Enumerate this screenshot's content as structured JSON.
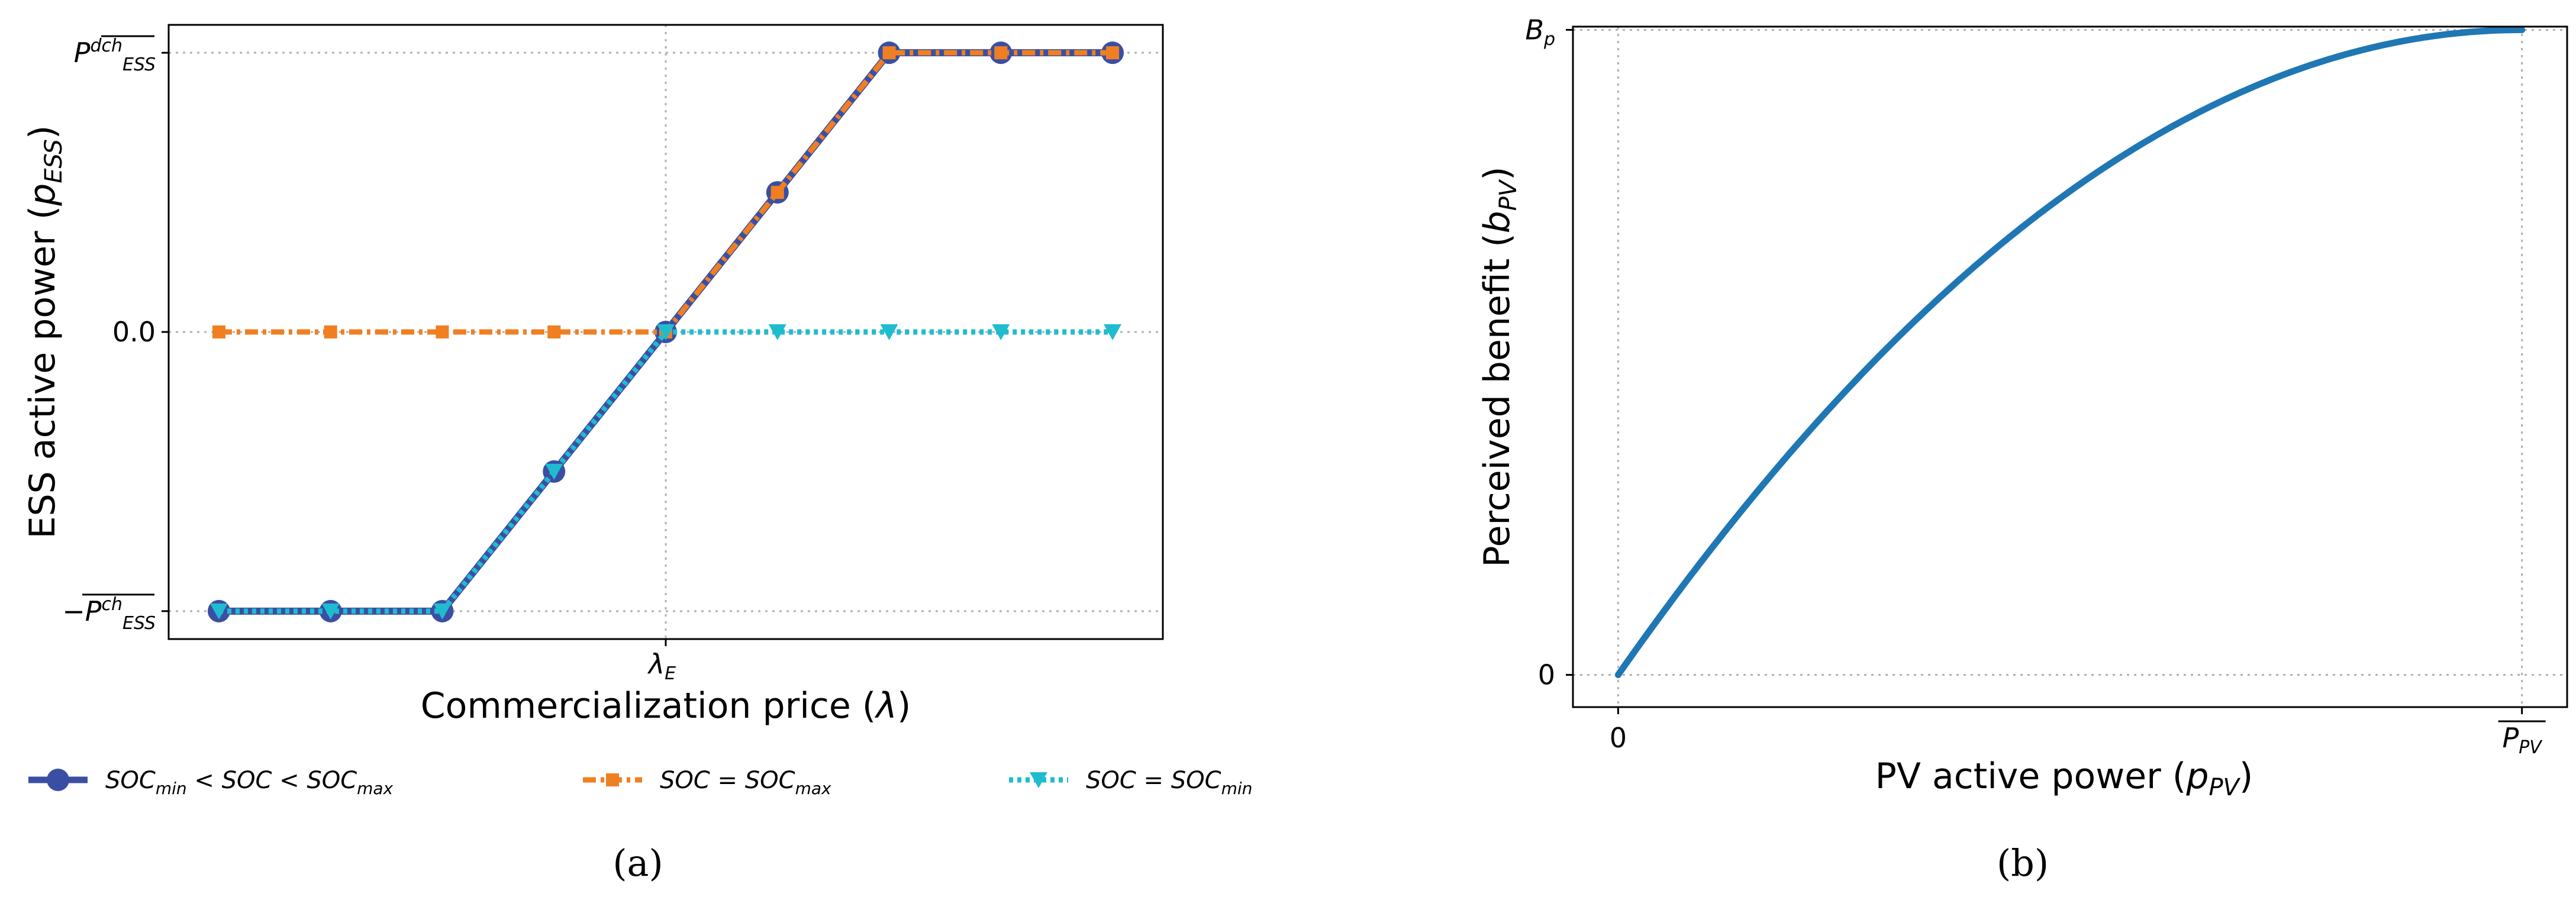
{
  "chart_data": [
    {
      "id": "a",
      "type": "line",
      "caption": "(a)",
      "xlabel_text": "Commercialization price (",
      "xlabel_sym": "λ",
      "xlabel_end": ")",
      "ylabel_text": "ESS active power (",
      "ylabel_sym": "p",
      "ylabel_sub": "ESS",
      "ylabel_end": ")",
      "x": [
        -4,
        -3,
        -2,
        -1,
        0,
        1,
        2,
        3,
        4
      ],
      "xlim": [
        -4.45,
        4.45
      ],
      "ylim": [
        -1.1,
        1.1
      ],
      "xticks": [
        {
          "value": 0,
          "sym": "λ",
          "sub": "E"
        }
      ],
      "yticks": [
        {
          "value": 1,
          "prefix": "",
          "sym": "P",
          "sup": "dch",
          "sub": "ESS",
          "overline": true
        },
        {
          "value": 0,
          "text": "0.0"
        },
        {
          "value": -1,
          "prefix": "−",
          "sym": "P",
          "sup": "ch",
          "sub": "ESS",
          "overline": true
        }
      ],
      "grid": true,
      "series": [
        {
          "name": "SOCmin < SOC < SOCmax",
          "legend": "SOC<sub>min</sub> < SOC < SOC<sub>max</sub>",
          "color": "#3a4fa3",
          "marker": "circle",
          "linestyle": "solid",
          "values": [
            -1,
            -1,
            -1,
            -0.5,
            0,
            0.5,
            1,
            1,
            1
          ]
        },
        {
          "name": "SOC = SOCmax",
          "legend": "SOC = SOC<sub>max</sub>",
          "color": "#f07f22",
          "marker": "square",
          "linestyle": "dashdot",
          "values": [
            0,
            0,
            0,
            0,
            0,
            0.5,
            1,
            1,
            1
          ]
        },
        {
          "name": "SOC = SOCmin",
          "legend": "SOC = SOC<sub>min</sub>",
          "color": "#1fbcd0",
          "marker": "triangle-down",
          "linestyle": "dotted",
          "values": [
            -1,
            -1,
            -1,
            -0.5,
            0,
            0,
            0,
            0,
            0
          ]
        }
      ]
    },
    {
      "id": "b",
      "type": "line",
      "caption": "(b)",
      "xlabel_text": "PV active power (",
      "xlabel_sym": "p",
      "xlabel_sub": "PV",
      "xlabel_end": ")",
      "ylabel_text": "Perceived benefit (",
      "ylabel_sym": "b",
      "ylabel_sub": "PV",
      "ylabel_end": ")",
      "xlim": [
        -0.05,
        1.05
      ],
      "ylim": [
        -0.05,
        1.005
      ],
      "xticks": [
        {
          "value": 0,
          "text": "0"
        },
        {
          "value": 1,
          "sym": "P",
          "sub": "PV",
          "overline": true
        }
      ],
      "yticks": [
        {
          "value": 0,
          "text": "0"
        },
        {
          "value": 1,
          "sym": "B",
          "sub": "p"
        }
      ],
      "grid": true,
      "color": "#1f77b4",
      "curve": "b = Bp * (2x - x^2)",
      "x": [
        0,
        0.1,
        0.2,
        0.3,
        0.4,
        0.5,
        0.6,
        0.7,
        0.8,
        0.9,
        1.0
      ],
      "values": [
        0,
        0.19,
        0.36,
        0.51,
        0.64,
        0.75,
        0.84,
        0.91,
        0.96,
        0.99,
        1.0
      ]
    }
  ]
}
